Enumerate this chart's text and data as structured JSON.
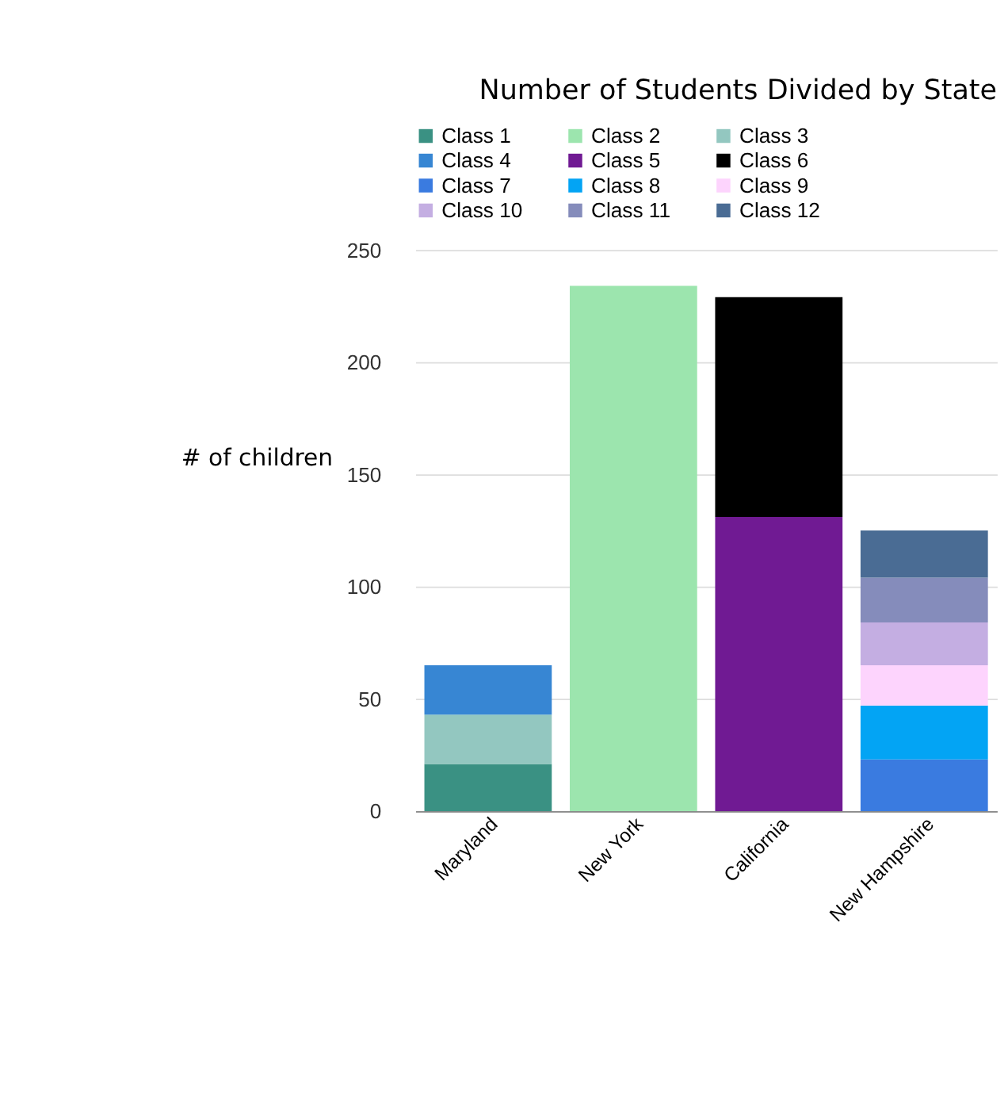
{
  "chart_data": {
    "type": "bar",
    "title": "Number of Students Divided by State",
    "ylabel": "# of children",
    "categories": [
      "Maryland",
      "New York",
      "California",
      "New Hampshire"
    ],
    "stacked": true,
    "ylim": [
      0,
      250
    ],
    "yticks": [
      0,
      50,
      100,
      150,
      200,
      250
    ],
    "grid": "y",
    "legend": "top",
    "series": [
      {
        "name": "Class 1",
        "color": "#3a9183",
        "values": [
          21,
          null,
          null,
          null
        ]
      },
      {
        "name": "Class 2",
        "color": "#9ce5ae",
        "values": [
          null,
          234,
          null,
          null
        ]
      },
      {
        "name": "Class 3",
        "color": "#93c7c0",
        "values": [
          22,
          null,
          null,
          null
        ]
      },
      {
        "name": "Class 4",
        "color": "#3786d3",
        "values": [
          22,
          null,
          null,
          null
        ]
      },
      {
        "name": "Class 5",
        "color": "#701a93",
        "values": [
          null,
          null,
          131,
          null
        ]
      },
      {
        "name": "Class 6",
        "color": "#000000",
        "values": [
          null,
          null,
          98,
          null
        ]
      },
      {
        "name": "Class 7",
        "color": "#3a7be0",
        "values": [
          null,
          null,
          null,
          23
        ]
      },
      {
        "name": "Class 8",
        "color": "#03a4f4",
        "values": [
          null,
          null,
          null,
          24
        ]
      },
      {
        "name": "Class 9",
        "color": "#fdd4fd",
        "values": [
          null,
          null,
          null,
          18
        ]
      },
      {
        "name": "Class 10",
        "color": "#c4aee2",
        "values": [
          null,
          null,
          null,
          19
        ]
      },
      {
        "name": "Class 11",
        "color": "#858cbb",
        "values": [
          null,
          null,
          null,
          20
        ]
      },
      {
        "name": "Class 12",
        "color": "#4a6c94",
        "values": [
          null,
          null,
          null,
          21
        ]
      }
    ]
  }
}
